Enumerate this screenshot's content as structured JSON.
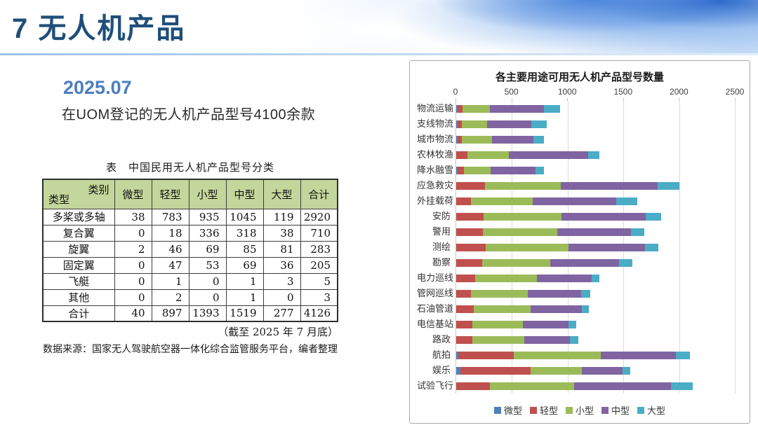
{
  "slide": {
    "title": "7 无人机产品",
    "date_label": "2025.07",
    "subtitle": "在UOM登记的无人机产品型号4100余款"
  },
  "table": {
    "title": "表　中国民用无人机产品型号分类",
    "corner_top_right": "类别",
    "corner_bottom_left": "类型",
    "columns": [
      "微型",
      "轻型",
      "小型",
      "中型",
      "大型",
      "合计"
    ],
    "rows": [
      {
        "label": "多桨或多轴",
        "values": [
          38,
          783,
          935,
          1045,
          119,
          2920
        ]
      },
      {
        "label": "复合翼",
        "values": [
          0,
          18,
          336,
          318,
          38,
          710
        ]
      },
      {
        "label": "旋翼",
        "values": [
          2,
          46,
          69,
          85,
          81,
          283
        ]
      },
      {
        "label": "固定翼",
        "values": [
          0,
          47,
          53,
          69,
          36,
          205
        ]
      },
      {
        "label": "飞艇",
        "values": [
          0,
          1,
          0,
          1,
          3,
          5
        ]
      },
      {
        "label": "其他",
        "values": [
          0,
          2,
          0,
          1,
          0,
          3
        ]
      },
      {
        "label": "合计",
        "values": [
          40,
          897,
          1393,
          1519,
          277,
          4126
        ]
      }
    ],
    "note_date": "（截至 2025 年 7 月底）",
    "note_source": "数据来源：国家无人驾驶航空器一体化综合监管服务平台，编者整理"
  },
  "chart_data": {
    "type": "bar",
    "orientation": "horizontal",
    "stacked": true,
    "title": "各主要用途可用无人机产品型号数量",
    "xlim": [
      0,
      2500
    ],
    "x_ticks": [
      0,
      500,
      1000,
      1500,
      2000,
      2500
    ],
    "grid": true,
    "legend_position": "bottom",
    "categories": [
      "物流运输",
      "支线物流",
      "城市物流",
      "农林牧渔",
      "降水融雪",
      "应急救灾",
      "外挂载荷",
      "安防",
      "警用",
      "测绘",
      "勘察",
      "电力巡线",
      "管网巡线",
      "石油管道",
      "电信基站",
      "路政",
      "航拍",
      "娱乐",
      "试验飞行"
    ],
    "series": [
      {
        "name": "微型",
        "color": "#4F81BD",
        "values": [
          10,
          10,
          10,
          0,
          10,
          0,
          0,
          0,
          0,
          0,
          0,
          0,
          0,
          0,
          0,
          0,
          20,
          40,
          0
        ]
      },
      {
        "name": "轻型",
        "color": "#C0504D",
        "values": [
          45,
          40,
          40,
          100,
          60,
          260,
          130,
          245,
          240,
          265,
          235,
          170,
          130,
          155,
          145,
          145,
          495,
          630,
          300
        ]
      },
      {
        "name": "小型",
        "color": "#9BBB59",
        "values": [
          250,
          225,
          270,
          375,
          240,
          680,
          555,
          700,
          665,
          740,
          610,
          555,
          510,
          510,
          455,
          465,
          785,
          460,
          755
        ]
      },
      {
        "name": "中型",
        "color": "#8064A2",
        "values": [
          480,
          400,
          375,
          710,
          400,
          865,
          750,
          755,
          660,
          690,
          615,
          490,
          480,
          460,
          410,
          410,
          670,
          360,
          875
        ]
      },
      {
        "name": "大型",
        "color": "#4BACC6",
        "values": [
          150,
          135,
          90,
          100,
          75,
          195,
          190,
          140,
          120,
          120,
          120,
          70,
          80,
          65,
          70,
          75,
          125,
          70,
          195
        ]
      }
    ]
  }
}
